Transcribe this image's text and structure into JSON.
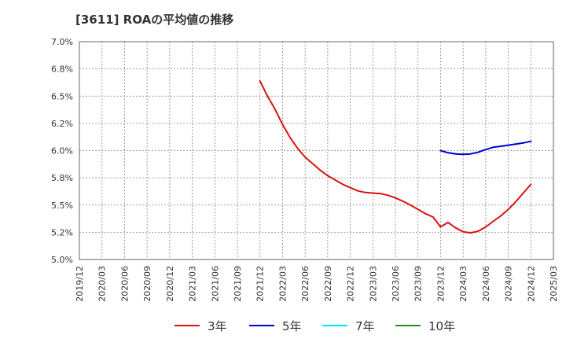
{
  "chart_data": {
    "type": "line",
    "title": "[3611]  ROAの平均値の推移",
    "xlabel": "",
    "ylabel": "",
    "ylim": [
      5.0,
      7.0
    ],
    "y_ticks": [
      5.0,
      5.25,
      5.5,
      5.75,
      6.0,
      6.25,
      6.5,
      6.75,
      7.0
    ],
    "y_tick_labels": [
      "5.0%",
      "5.2%",
      "5.5%",
      "5.8%",
      "6.0%",
      "6.2%",
      "6.5%",
      "6.8%",
      "7.0%"
    ],
    "x_tick_labels": [
      "2019/12",
      "2020/03",
      "2020/06",
      "2020/09",
      "2020/12",
      "2021/03",
      "2021/06",
      "2021/09",
      "2021/12",
      "2022/03",
      "2022/06",
      "2022/09",
      "2022/12",
      "2023/03",
      "2023/06",
      "2023/09",
      "2023/12",
      "2024/03",
      "2024/06",
      "2024/09",
      "2024/12",
      "2025/03"
    ],
    "grid": true,
    "legend_position": "bottom",
    "series": [
      {
        "name": "3年",
        "color": "#dd1111",
        "points": [
          {
            "x": "2021/12",
            "y": 6.64
          },
          {
            "x": "2022/01",
            "y": 6.5
          },
          {
            "x": "2022/02",
            "y": 6.38
          },
          {
            "x": "2022/03",
            "y": 6.24
          },
          {
            "x": "2022/04",
            "y": 6.12
          },
          {
            "x": "2022/05",
            "y": 6.02
          },
          {
            "x": "2022/06",
            "y": 5.94
          },
          {
            "x": "2022/07",
            "y": 5.88
          },
          {
            "x": "2022/08",
            "y": 5.82
          },
          {
            "x": "2022/09",
            "y": 5.77
          },
          {
            "x": "2022/10",
            "y": 5.73
          },
          {
            "x": "2022/11",
            "y": 5.69
          },
          {
            "x": "2022/12",
            "y": 5.66
          },
          {
            "x": "2023/01",
            "y": 5.63
          },
          {
            "x": "2023/02",
            "y": 5.615
          },
          {
            "x": "2023/03",
            "y": 5.61
          },
          {
            "x": "2023/04",
            "y": 5.605
          },
          {
            "x": "2023/05",
            "y": 5.59
          },
          {
            "x": "2023/06",
            "y": 5.565
          },
          {
            "x": "2023/07",
            "y": 5.535
          },
          {
            "x": "2023/08",
            "y": 5.5
          },
          {
            "x": "2023/09",
            "y": 5.46
          },
          {
            "x": "2023/10",
            "y": 5.42
          },
          {
            "x": "2023/11",
            "y": 5.39
          },
          {
            "x": "2023/12",
            "y": 5.3
          },
          {
            "x": "2024/01",
            "y": 5.34
          },
          {
            "x": "2024/02",
            "y": 5.29
          },
          {
            "x": "2024/03",
            "y": 5.255
          },
          {
            "x": "2024/04",
            "y": 5.245
          },
          {
            "x": "2024/05",
            "y": 5.26
          },
          {
            "x": "2024/06",
            "y": 5.3
          },
          {
            "x": "2024/07",
            "y": 5.35
          },
          {
            "x": "2024/08",
            "y": 5.4
          },
          {
            "x": "2024/09",
            "y": 5.46
          },
          {
            "x": "2024/10",
            "y": 5.53
          },
          {
            "x": "2024/11",
            "y": 5.61
          },
          {
            "x": "2024/12",
            "y": 5.69
          }
        ]
      },
      {
        "name": "5年",
        "color": "#0000cc",
        "points": [
          {
            "x": "2023/12",
            "y": 6.0
          },
          {
            "x": "2024/01",
            "y": 5.98
          },
          {
            "x": "2024/02",
            "y": 5.97
          },
          {
            "x": "2024/03",
            "y": 5.965
          },
          {
            "x": "2024/04",
            "y": 5.97
          },
          {
            "x": "2024/05",
            "y": 5.985
          },
          {
            "x": "2024/06",
            "y": 6.01
          },
          {
            "x": "2024/07",
            "y": 6.03
          },
          {
            "x": "2024/08",
            "y": 6.04
          },
          {
            "x": "2024/09",
            "y": 6.05
          },
          {
            "x": "2024/10",
            "y": 6.06
          },
          {
            "x": "2024/11",
            "y": 6.07
          },
          {
            "x": "2024/12",
            "y": 6.085
          }
        ]
      },
      {
        "name": "7年",
        "color": "#00e5ee",
        "points": []
      },
      {
        "name": "10年",
        "color": "#228b22",
        "points": []
      }
    ]
  }
}
